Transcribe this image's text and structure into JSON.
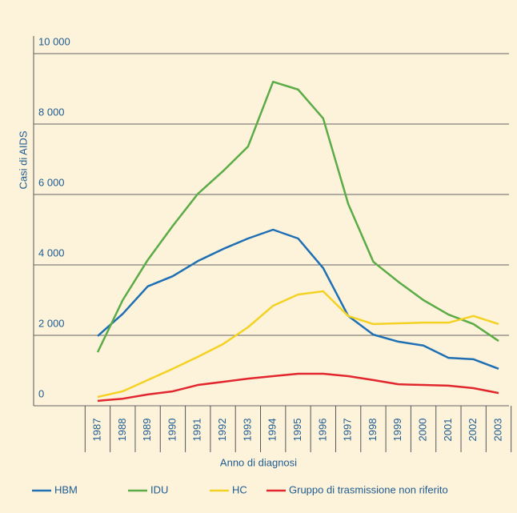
{
  "chart_data": {
    "type": "line",
    "xlabel": "Anno di diagnosi",
    "ylabel": "Casi di AIDS",
    "categories": [
      "1987",
      "1988",
      "1989",
      "1990",
      "1991",
      "1992",
      "1993",
      "1994",
      "1995",
      "1996",
      "1997",
      "1998",
      "1999",
      "2000",
      "2001",
      "2002",
      "2003"
    ],
    "ylim": [
      0,
      10000
    ],
    "yticks": [
      0,
      {
        "value": 2000,
        "label": "2 000"
      },
      {
        "value": 4000,
        "label": "4 000"
      },
      {
        "value": 6000,
        "label": "6 000"
      },
      {
        "value": 8000,
        "label": "8 000"
      },
      {
        "value": 10000,
        "label": "10 000"
      }
    ],
    "grid": true,
    "legend": "bottom",
    "series": [
      {
        "name": "HBM",
        "color": "#1f6fb4",
        "values": [
          1980,
          2610,
          3390,
          3680,
          4110,
          4450,
          4750,
          5000,
          4750,
          3910,
          2550,
          2020,
          1820,
          1710,
          1360,
          1320,
          1050
        ]
      },
      {
        "name": "IDU",
        "color": "#5bab47",
        "values": [
          1520,
          3000,
          4140,
          5110,
          6020,
          6660,
          7360,
          9200,
          8980,
          8160,
          5730,
          4090,
          3520,
          3000,
          2590,
          2320,
          1840
        ]
      },
      {
        "name": "HC",
        "color": "#f4d223",
        "values": [
          250,
          410,
          730,
          1050,
          1390,
          1750,
          2230,
          2840,
          3160,
          3250,
          2550,
          2320,
          2340,
          2360,
          2360,
          2550,
          2320
        ]
      },
      {
        "name": "Gruppo di trasmissione non riferito",
        "color": "#e2262d",
        "values": [
          140,
          200,
          320,
          410,
          590,
          680,
          770,
          840,
          910,
          910,
          840,
          730,
          610,
          590,
          570,
          500,
          360
        ]
      }
    ]
  }
}
